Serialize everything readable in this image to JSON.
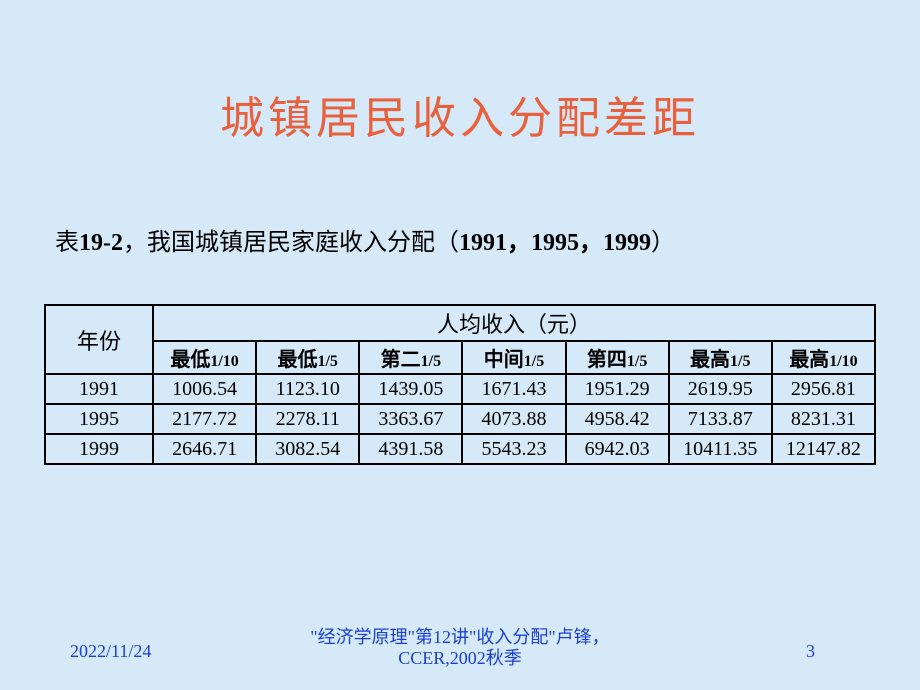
{
  "title": "城镇居民收入分配差距",
  "caption_prefix": "表",
  "caption_num": "19-2",
  "caption_sep": "，",
  "caption_text": "我国城镇居民家庭收入分配（",
  "caption_years": "1991，1995，1999",
  "caption_close": "）",
  "table": {
    "year_header": "年份",
    "group_header": "人均收入（元）",
    "columns": [
      {
        "zh": "最低",
        "frac": "1/10"
      },
      {
        "zh": "最低",
        "frac": "1/5"
      },
      {
        "zh": "第二",
        "frac": "1/5"
      },
      {
        "zh": "中间",
        "frac": "1/5"
      },
      {
        "zh": "第四",
        "frac": "1/5"
      },
      {
        "zh": "最高",
        "frac": "1/5"
      },
      {
        "zh": "最高",
        "frac": "1/10"
      }
    ],
    "rows": [
      {
        "year": "1991",
        "v": [
          "1006.54",
          "1123.10",
          "1439.05",
          "1671.43",
          "1951.29",
          "2619.95",
          "2956.81"
        ]
      },
      {
        "year": "1995",
        "v": [
          "2177.72",
          "2278.11",
          "3363.67",
          "4073.88",
          "4958.42",
          "7133.87",
          "8231.31"
        ]
      },
      {
        "year": "1999",
        "v": [
          "2646.71",
          "3082.54",
          "4391.58",
          "5543.23",
          "6942.03",
          "10411.35",
          "12147.82"
        ]
      }
    ]
  },
  "footer": {
    "date": "2022/11/24",
    "center": "\"经济学原理\"第12讲\"收入分配\"卢锋，CCER,2002秋季",
    "page": "3"
  },
  "colors": {
    "background": "#d6e9f8",
    "title": "#e8613c",
    "border": "#000000",
    "footer": "#1a3fd6"
  }
}
